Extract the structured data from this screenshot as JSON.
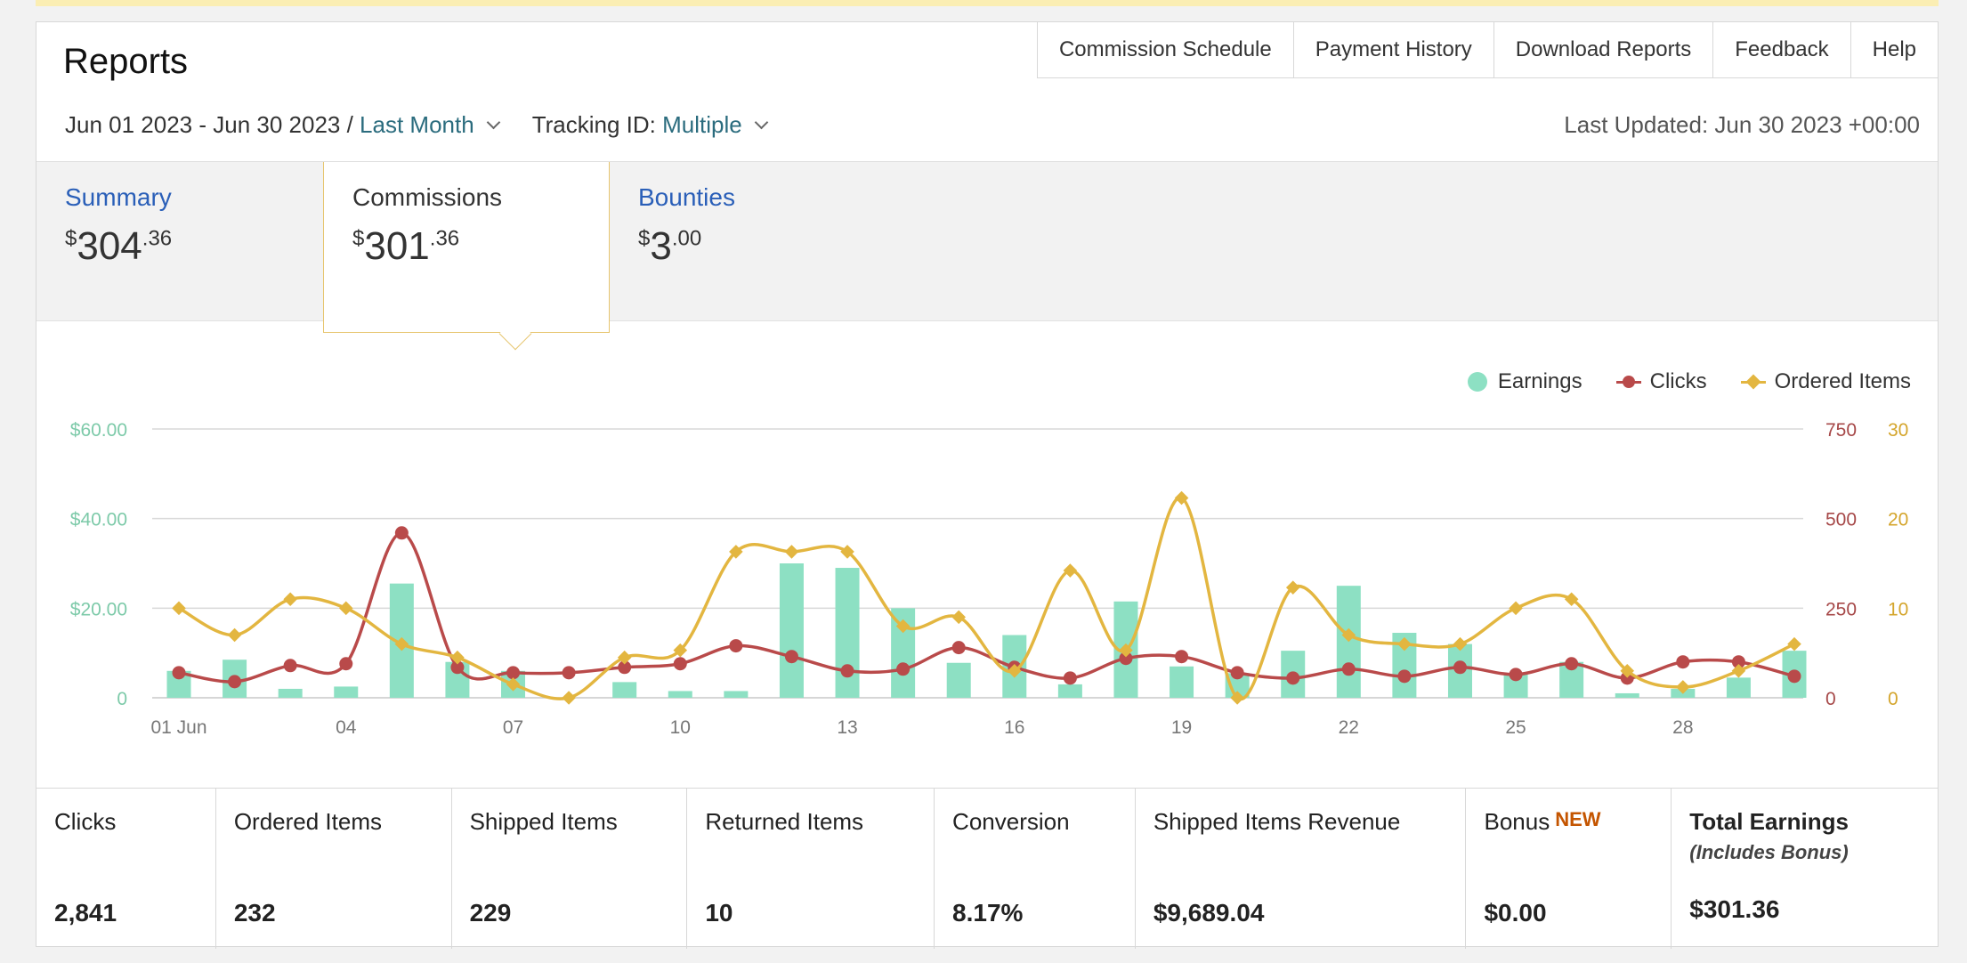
{
  "header": {
    "title": "Reports",
    "nav": [
      "Commission Schedule",
      "Payment History",
      "Download Reports",
      "Feedback",
      "Help"
    ],
    "date_range": "Jun 01 2023 - Jun 30 2023 /",
    "period_link": "Last Month",
    "tracking_label": "Tracking ID:",
    "tracking_value": "Multiple",
    "last_updated": "Last Updated: Jun 30 2023 +00:00"
  },
  "tabs": [
    {
      "label": "Summary",
      "currency": "$",
      "whole": "304",
      "cents": ".36"
    },
    {
      "label": "Commissions",
      "currency": "$",
      "whole": "301",
      "cents": ".36"
    },
    {
      "label": "Bounties",
      "currency": "$",
      "whole": "3",
      "cents": ".00"
    }
  ],
  "legend": {
    "earnings": "Earnings",
    "clicks": "Clicks",
    "ordered": "Ordered Items"
  },
  "colors": {
    "earnings": "#8de0c3",
    "clicks": "#b94a4a",
    "ordered": "#e3b640",
    "link": "#2a5fb8",
    "new_badge": "#c45500"
  },
  "chart_data": {
    "type": "bar",
    "x_tick_labels": [
      "01 Jun",
      "04",
      "07",
      "10",
      "13",
      "16",
      "19",
      "22",
      "25",
      "28"
    ],
    "x": [
      1,
      2,
      3,
      4,
      5,
      6,
      7,
      8,
      9,
      10,
      11,
      12,
      13,
      14,
      15,
      16,
      17,
      18,
      19,
      20,
      21,
      22,
      23,
      24,
      25,
      26,
      27,
      28,
      29,
      30
    ],
    "y_left_labels": [
      "$60.00",
      "$40.00",
      "$20.00",
      "0"
    ],
    "y_clicks_labels": [
      "750",
      "500",
      "250",
      "0"
    ],
    "y_ordered_labels": [
      "30",
      "20",
      "10",
      "0"
    ],
    "ylim_earnings": [
      0,
      60
    ],
    "ylim_clicks": [
      0,
      750
    ],
    "ylim_ordered": [
      0,
      30
    ],
    "series": [
      {
        "name": "Earnings",
        "axis": "left",
        "values": [
          6,
          8.5,
          2,
          2.5,
          25.5,
          8,
          6,
          0,
          3.5,
          1.5,
          1.5,
          30,
          29,
          20,
          7.8,
          14,
          3,
          21.5,
          7,
          5.5,
          10.5,
          25,
          14.5,
          12,
          5.5,
          8,
          1,
          2,
          4.5,
          10.5
        ]
      },
      {
        "name": "Clicks",
        "axis": "clicks",
        "values": [
          70,
          45,
          90,
          95,
          460,
          85,
          70,
          70,
          85,
          95,
          145,
          115,
          75,
          80,
          140,
          85,
          55,
          110,
          115,
          70,
          55,
          80,
          60,
          85,
          65,
          95,
          55,
          100,
          100,
          60
        ]
      },
      {
        "name": "Ordered Items",
        "axis": "ordered",
        "values": [
          10,
          7,
          11,
          10,
          6,
          4.5,
          1.5,
          0,
          4.5,
          5.3,
          16.3,
          16.3,
          16.3,
          8,
          9,
          3,
          14.2,
          5.3,
          22.3,
          0,
          12.3,
          7,
          6,
          6,
          10,
          11,
          3,
          1.2,
          3,
          6
        ]
      }
    ]
  },
  "stats": [
    {
      "label": "Clicks",
      "value": "2,841"
    },
    {
      "label": "Ordered Items",
      "value": "232"
    },
    {
      "label": "Shipped Items",
      "value": "229"
    },
    {
      "label": "Returned Items",
      "value": "10"
    },
    {
      "label": "Conversion",
      "value": "8.17%"
    },
    {
      "label": "Shipped Items Revenue",
      "value": "$9,689.04"
    },
    {
      "label": "Bonus",
      "badge": "NEW",
      "value": "$0.00"
    },
    {
      "label": "Total Earnings",
      "sub": "(Includes Bonus)",
      "value": "$301.36"
    }
  ]
}
